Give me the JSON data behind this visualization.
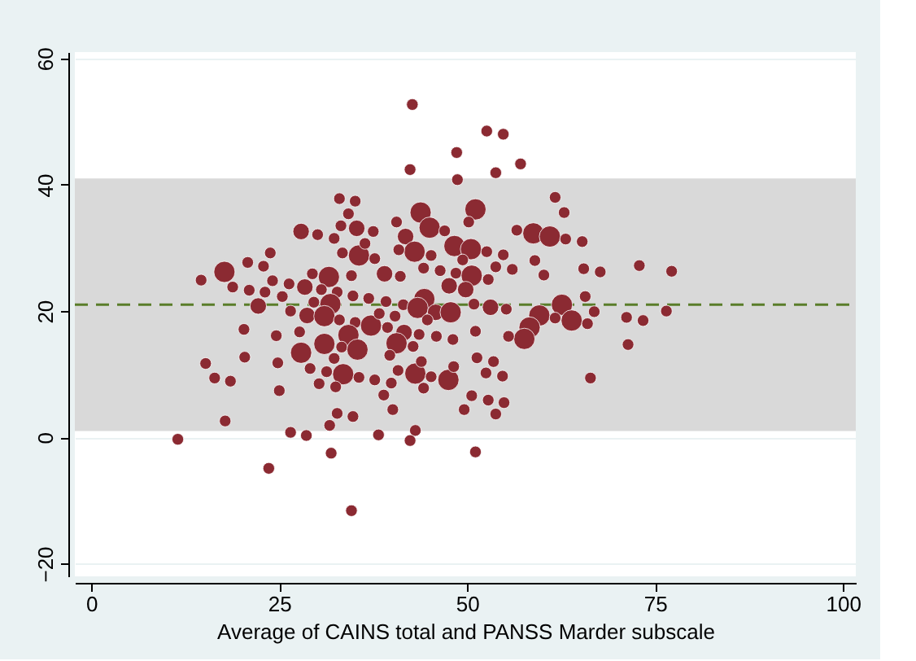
{
  "chart_data": {
    "type": "bubble",
    "xlabel": "Average of CAINS total and PANSS Marder subscale",
    "xlim": [
      -2.2,
      101.7
    ],
    "xticks": [
      0,
      25,
      50,
      75,
      100
    ],
    "ylim": [
      -22,
      61
    ],
    "yticks": [
      -20,
      0,
      20,
      40,
      60
    ],
    "grid": "y",
    "bands": [
      {
        "axis": "y",
        "from": 1,
        "to": 41,
        "color": "#d9d9d9"
      }
    ],
    "ref_lines": [
      {
        "axis": "y",
        "value": 21,
        "color": "#5a7d2a",
        "line_style": "dashed"
      }
    ],
    "series": [
      {
        "color": "#8b2a32",
        "x": [
          42.7,
          52.6,
          48.6,
          42.4,
          48.7,
          53.8,
          33.0,
          35.1,
          34.2,
          43.8,
          51.1,
          33.2,
          35.3,
          27.9,
          30.1,
          32.3,
          37.5,
          40.6,
          45.0,
          41.8,
          47.0,
          50.2,
          48.3,
          50.5,
          35.6,
          33.4,
          36.4,
          43.0,
          40.9,
          45.2,
          49.4,
          52.6,
          37.7,
          23.8,
          20.8,
          22.9,
          14.6,
          17.7,
          18.8,
          21.0,
          23.1,
          24.1,
          26.3,
          29.4,
          31.6,
          28.4,
          30.6,
          32.7,
          34.6,
          39.0,
          41.1,
          44.2,
          46.4,
          48.5,
          50.6,
          47.6,
          49.8,
          52.8,
          34.8,
          36.9,
          22.2,
          25.4,
          29.6,
          31.8,
          39.2,
          41.5,
          44.3,
          43.4,
          45.8,
          47.8,
          50.9,
          53.1,
          26.5,
          28.7,
          31.0,
          33.0,
          35.1,
          37.2,
          38.3,
          40.4,
          39.4,
          41.6,
          44.7,
          43.6,
          45.9,
          48.1,
          51.1,
          20.3,
          24.6,
          27.7,
          34.2,
          31.0,
          27.9,
          33.3,
          35.4,
          40.6,
          42.8,
          39.7,
          20.4,
          24.8,
          15.2,
          16.4,
          18.5,
          25.0,
          29.1,
          32.3,
          31.3,
          33.5,
          35.6,
          30.3,
          32.5,
          37.7,
          39.9,
          40.8,
          43.1,
          43.9,
          45.2,
          47.5,
          44.2,
          48.2,
          51.3,
          52.5,
          38.9,
          40.1,
          32.7,
          34.8,
          31.7,
          17.8,
          26.5,
          28.6,
          38.2,
          43.1,
          42.4,
          50.6,
          49.6,
          52.8,
          53.8,
          11.5,
          23.6,
          31.9,
          34.6,
          51.1,
          54.8,
          57.1,
          61.7,
          62.9,
          56.6,
          58.8,
          61.0,
          63.1,
          65.3,
          54.8,
          59.0,
          53.8,
          56.0,
          60.2,
          65.5,
          67.7,
          72.9,
          77.2,
          65.7,
          55.2,
          62.6,
          66.9,
          59.6,
          61.7,
          63.9,
          58.3,
          57.6,
          55.5,
          66.0,
          71.2,
          73.4,
          76.5,
          71.4,
          66.4,
          53.5,
          54.7,
          54.9
        ],
        "values": [
          52.7,
          48.5,
          45.1,
          42.4,
          40.8,
          41.9,
          37.8,
          37.4,
          35.4,
          35.6,
          36.1,
          33.5,
          33.1,
          32.6,
          32.1,
          31.5,
          32.6,
          34.1,
          33.2,
          31.8,
          32.7,
          34.1,
          30.3,
          29.8,
          28.8,
          29.2,
          30.7,
          29.4,
          29.7,
          28.8,
          28.1,
          29.4,
          28.3,
          29.2,
          27.7,
          27.1,
          24.9,
          26.2,
          23.8,
          23.3,
          23.0,
          24.8,
          24.3,
          25.9,
          25.4,
          23.8,
          23.4,
          23.0,
          25.6,
          25.9,
          25.5,
          26.8,
          26.4,
          26.0,
          25.6,
          24.0,
          23.4,
          25.0,
          22.4,
          22.0,
          20.8,
          22.3,
          21.4,
          21.1,
          21.5,
          21.0,
          21.9,
          20.5,
          19.8,
          19.8,
          21.1,
          20.6,
          20.0,
          19.3,
          19.2,
          18.6,
          18.2,
          17.7,
          19.6,
          19.2,
          17.4,
          16.6,
          18.6,
          16.3,
          16.0,
          15.5,
          16.8,
          17.1,
          16.1,
          16.7,
          16.2,
          14.8,
          13.4,
          14.3,
          13.9,
          14.9,
          14.4,
          13.0,
          12.7,
          11.8,
          11.7,
          9.4,
          8.9,
          7.4,
          10.9,
          12.5,
          10.4,
          10.0,
          9.5,
          8.5,
          8.0,
          9.1,
          8.6,
          10.6,
          10.1,
          12.0,
          9.6,
          9.1,
          7.8,
          11.2,
          12.6,
          10.2,
          6.7,
          4.4,
          3.8,
          3.3,
          1.9,
          2.6,
          0.8,
          0.3,
          0.4,
          1.1,
          -0.5,
          6.6,
          4.4,
          5.9,
          3.7,
          -0.3,
          -4.9,
          -2.5,
          -11.6,
          -2.3,
          48.0,
          43.3,
          38.0,
          35.6,
          32.8,
          32.3,
          31.8,
          31.4,
          31.0,
          28.9,
          28.0,
          27.0,
          26.6,
          25.7,
          26.7,
          26.2,
          27.2,
          26.3,
          22.3,
          20.3,
          21.0,
          19.9,
          19.3,
          18.9,
          18.5,
          17.4,
          15.6,
          16.0,
          18.0,
          19.0,
          18.5,
          20.0,
          14.7,
          9.4,
          12.0,
          9.7,
          5.5
        ],
        "sizes": [
          0.3,
          0.3,
          0.3,
          0.3,
          0.3,
          0.3,
          0.3,
          0.3,
          0.3,
          1,
          1,
          0.3,
          0.6,
          0.6,
          0.3,
          0.3,
          0.3,
          0.3,
          1,
          0.6,
          0.3,
          0.3,
          1,
          1,
          1,
          0.3,
          0.3,
          1,
          0.3,
          0.3,
          0.3,
          0.3,
          0.3,
          0.3,
          0.3,
          0.3,
          0.3,
          1,
          0.3,
          0.3,
          0.3,
          0.3,
          0.3,
          0.3,
          1,
          0.6,
          0.3,
          0.3,
          0.3,
          0.6,
          0.3,
          0.3,
          0.3,
          0.3,
          1,
          0.6,
          0.6,
          0.3,
          0.3,
          0.3,
          0.6,
          0.3,
          0.3,
          1,
          0.3,
          0.3,
          1,
          1,
          0.6,
          1,
          0.3,
          0.6,
          0.3,
          0.6,
          1,
          0.3,
          0.3,
          1,
          0.3,
          0.3,
          0.3,
          0.6,
          0.3,
          0.3,
          0.3,
          0.3,
          0.3,
          0.3,
          0.3,
          0.3,
          1,
          1,
          1,
          0.3,
          1,
          1,
          0.3,
          0.3,
          0.3,
          0.3,
          0.3,
          0.3,
          0.3,
          0.3,
          0.3,
          0.3,
          0.3,
          1,
          0.3,
          0.3,
          0.3,
          0.3,
          0.3,
          0.3,
          1,
          0.3,
          0.3,
          1,
          0.3,
          0.3,
          0.3,
          0.3,
          0.3,
          0.3,
          0.3,
          0.3,
          0.3,
          0.3,
          0.3,
          0.3,
          0.3,
          0.3,
          0.3,
          0.3,
          0.3,
          0.3,
          0.3,
          0.3,
          0.3,
          0.3,
          0.3,
          0.3,
          0.3,
          0.3,
          0.3,
          0.3,
          0.3,
          1,
          1,
          0.3,
          0.3,
          0.3,
          0.3,
          0.3,
          0.3,
          0.3,
          0.3,
          0.3,
          0.3,
          0.3,
          0.3,
          0.3,
          1,
          0.3,
          1,
          0.3,
          1,
          1,
          1,
          0.3,
          0.3,
          0.3,
          0.3,
          0.3,
          0.3,
          0.3,
          0.3,
          0.3,
          0.3
        ]
      }
    ]
  }
}
